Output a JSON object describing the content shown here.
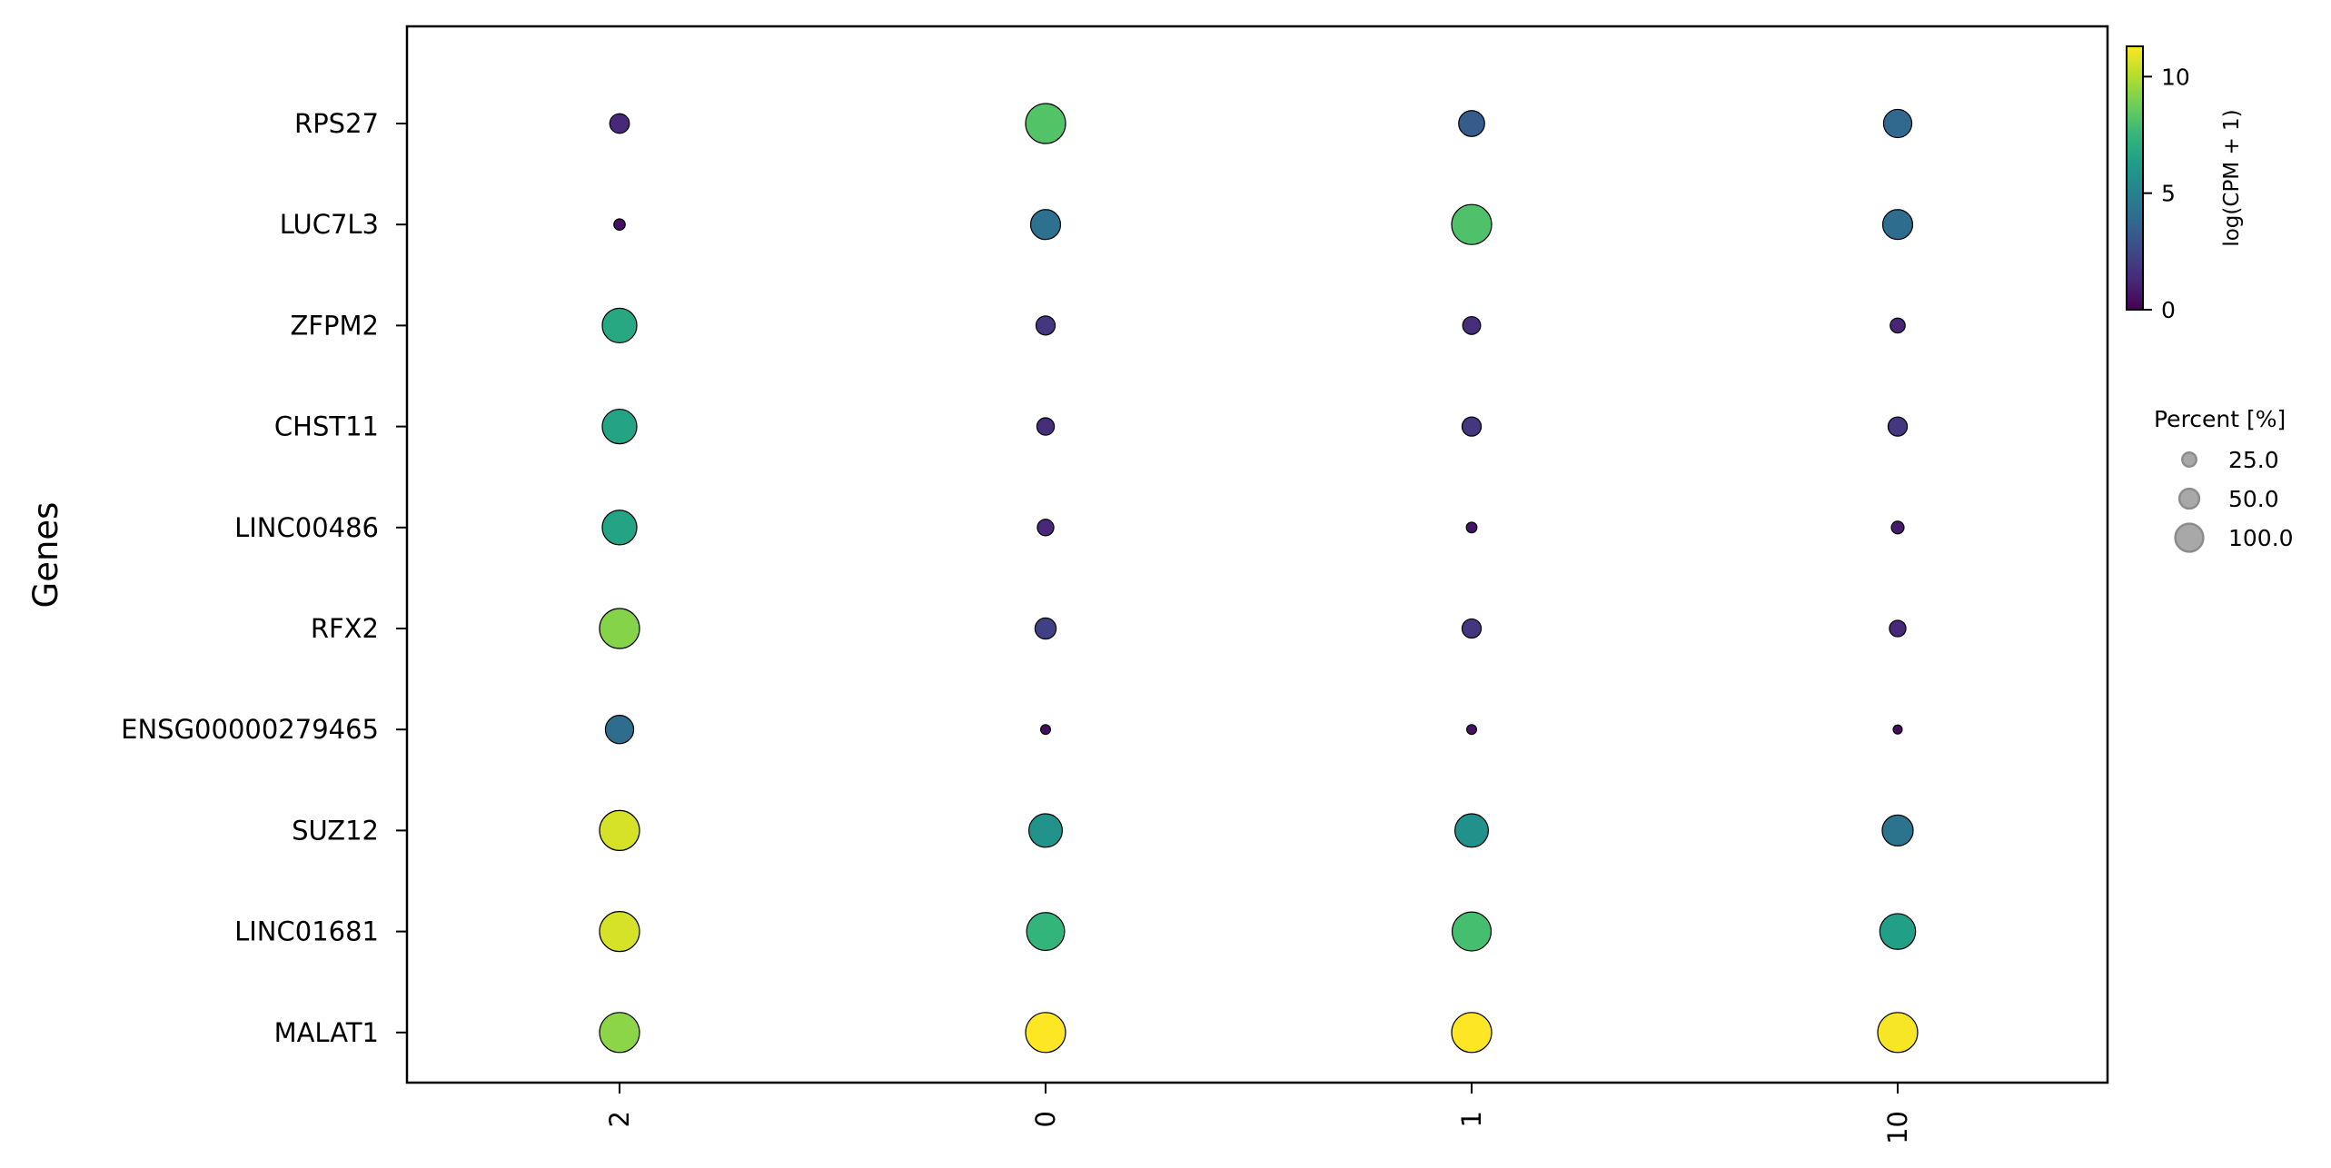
{
  "chart_data": {
    "type": "scatter",
    "subtype": "dotplot",
    "title": "",
    "xlabel": "",
    "ylabel": "Genes",
    "x_categories": [
      "2",
      "0",
      "1",
      "10"
    ],
    "y_categories": [
      "RPS27",
      "LUC7L3",
      "ZFPM2",
      "CHST11",
      "LINC00486",
      "RFX2",
      "ENSG00000279465",
      "SUZ12",
      "LINC01681",
      "MALAT1"
    ],
    "grid": false,
    "points": [
      {
        "gene": "RPS27",
        "group": "2",
        "value": 1.3,
        "percent": 24
      },
      {
        "gene": "RPS27",
        "group": "0",
        "value": 8.2,
        "percent": 100
      },
      {
        "gene": "RPS27",
        "group": "1",
        "value": 3.3,
        "percent": 42
      },
      {
        "gene": "RPS27",
        "group": "10",
        "value": 3.8,
        "percent": 50
      },
      {
        "gene": "LUC7L3",
        "group": "2",
        "value": 0.5,
        "percent": 8
      },
      {
        "gene": "LUC7L3",
        "group": "0",
        "value": 4.2,
        "percent": 56
      },
      {
        "gene": "LUC7L3",
        "group": "1",
        "value": 8.1,
        "percent": 100
      },
      {
        "gene": "LUC7L3",
        "group": "10",
        "value": 4.0,
        "percent": 56
      },
      {
        "gene": "ZFPM2",
        "group": "2",
        "value": 6.8,
        "percent": 75
      },
      {
        "gene": "ZFPM2",
        "group": "0",
        "value": 1.8,
        "percent": 23
      },
      {
        "gene": "ZFPM2",
        "group": "1",
        "value": 1.5,
        "percent": 20
      },
      {
        "gene": "ZFPM2",
        "group": "10",
        "value": 1.2,
        "percent": 14
      },
      {
        "gene": "CHST11",
        "group": "2",
        "value": 6.6,
        "percent": 75
      },
      {
        "gene": "CHST11",
        "group": "0",
        "value": 1.5,
        "percent": 19
      },
      {
        "gene": "CHST11",
        "group": "1",
        "value": 1.8,
        "percent": 23
      },
      {
        "gene": "CHST11",
        "group": "10",
        "value": 1.8,
        "percent": 23
      },
      {
        "gene": "LINC00486",
        "group": "2",
        "value": 6.6,
        "percent": 75
      },
      {
        "gene": "LINC00486",
        "group": "0",
        "value": 1.3,
        "percent": 17
      },
      {
        "gene": "LINC00486",
        "group": "1",
        "value": 0.6,
        "percent": 7
      },
      {
        "gene": "LINC00486",
        "group": "10",
        "value": 0.8,
        "percent": 10
      },
      {
        "gene": "RFX2",
        "group": "2",
        "value": 9.2,
        "percent": 100
      },
      {
        "gene": "RFX2",
        "group": "0",
        "value": 2.2,
        "percent": 28
      },
      {
        "gene": "RFX2",
        "group": "1",
        "value": 1.8,
        "percent": 23
      },
      {
        "gene": "RFX2",
        "group": "10",
        "value": 1.3,
        "percent": 17
      },
      {
        "gene": "ENSG00000279465",
        "group": "2",
        "value": 4.0,
        "percent": 50
      },
      {
        "gene": "ENSG00000279465",
        "group": "0",
        "value": 0.4,
        "percent": 6
      },
      {
        "gene": "ENSG00000279465",
        "group": "1",
        "value": 0.5,
        "percent": 6
      },
      {
        "gene": "ENSG00000279465",
        "group": "10",
        "value": 0.4,
        "percent": 5
      },
      {
        "gene": "SUZ12",
        "group": "2",
        "value": 10.6,
        "percent": 100
      },
      {
        "gene": "SUZ12",
        "group": "0",
        "value": 5.8,
        "percent": 70
      },
      {
        "gene": "SUZ12",
        "group": "1",
        "value": 5.7,
        "percent": 70
      },
      {
        "gene": "SUZ12",
        "group": "10",
        "value": 4.3,
        "percent": 60
      },
      {
        "gene": "LINC01681",
        "group": "2",
        "value": 10.6,
        "percent": 100
      },
      {
        "gene": "LINC01681",
        "group": "0",
        "value": 7.4,
        "percent": 90
      },
      {
        "gene": "LINC01681",
        "group": "1",
        "value": 7.9,
        "percent": 95
      },
      {
        "gene": "LINC01681",
        "group": "10",
        "value": 6.4,
        "percent": 80
      },
      {
        "gene": "MALAT1",
        "group": "2",
        "value": 9.3,
        "percent": 100
      },
      {
        "gene": "MALAT1",
        "group": "0",
        "value": 11.3,
        "percent": 100
      },
      {
        "gene": "MALAT1",
        "group": "1",
        "value": 11.4,
        "percent": 100
      },
      {
        "gene": "MALAT1",
        "group": "10",
        "value": 11.2,
        "percent": 100
      }
    ],
    "colorbar": {
      "label": "log(CPM + 1)",
      "colormap": "viridis",
      "range": [
        0,
        11.3
      ],
      "ticks": [
        0,
        5,
        10
      ],
      "tick_labels": [
        "0",
        "5",
        "10"
      ]
    },
    "size_legend": {
      "title": "Percent [%]",
      "entries": [
        {
          "label": "25.0",
          "percent": 25
        },
        {
          "label": "50.0",
          "percent": 50
        },
        {
          "label": "100.0",
          "percent": 100
        }
      ],
      "placement": "right"
    },
    "colors": {
      "dot_edge": "#000000",
      "legend_dot": "#a8a8a8",
      "legend_dot_edge": "#8c8c8c",
      "viridis_stops": [
        "#440154",
        "#482878",
        "#3e4989",
        "#31688e",
        "#26828e",
        "#1f9e89",
        "#35b779",
        "#6ece58",
        "#b5de2b",
        "#fde725"
      ]
    }
  }
}
